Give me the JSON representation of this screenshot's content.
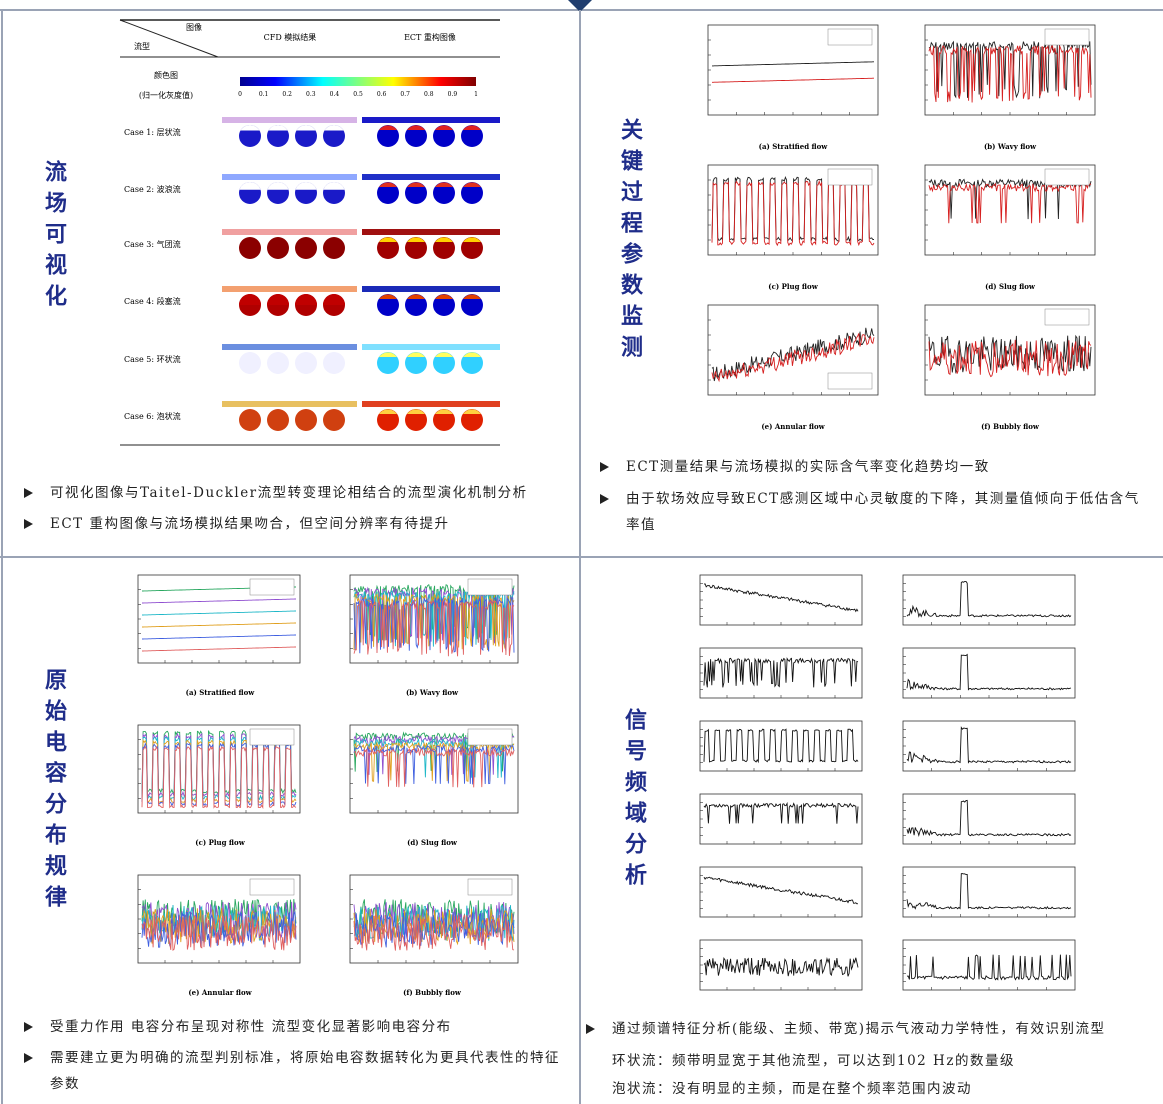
{
  "visualization": {
    "title": "流场可视化",
    "header": {
      "corner_top": "图像",
      "corner_bottom": "流型",
      "cfd": "CFD 模拟结果",
      "ect": "ECT 重构图像"
    },
    "colormap_label": "颜色图",
    "colormap_sublabel": "(归一化灰度值)",
    "colorbar_ticks": [
      0,
      0.1,
      0.2,
      0.3,
      0.4,
      0.5,
      0.6,
      0.7,
      0.8,
      0.9,
      1
    ],
    "cases": [
      "Case 1: 层状流",
      "Case 2: 波浪流",
      "Case 3: 气团流",
      "Case 4: 段塞流",
      "Case 5: 环状流",
      "Case 6: 泡状流"
    ],
    "bullets": [
      "可视化图像与Taitel-Duckler流型转变理论相结合的流型演化机制分析",
      "ECT 重构图像与流场模拟结果吻合，但空间分辨率有待提升"
    ]
  },
  "monitoring": {
    "title": "关键过程参数监测",
    "captions": [
      "(a) Stratified flow",
      "(b) Wavy flow",
      "(c) Plug flow",
      "(d) Slug flow",
      "(e) Annular flow",
      "(f) Bubbly flow"
    ],
    "bullets": [
      "ECT测量结果与流场模拟的实际含气率变化趋势均一致",
      "由于软场效应导致ECT感测区域中心灵敏度的下降，其测量值倾向于低估含气率值"
    ]
  },
  "capacitance": {
    "title": "原始电容分布规律",
    "captions": [
      "(a) Stratified flow",
      "(b) Wavy flow",
      "(c) Plug flow",
      "(d) Slug flow",
      "(e) Annular flow",
      "(f) Bubbly flow"
    ],
    "bullets": [
      "受重力作用 电容分布呈现对称性 流型变化显著影响电容分布",
      "需要建立更为明确的流型判别标准，将原始电容数据转化为更具代表性的特征参数"
    ]
  },
  "spectrum": {
    "title": "信号频域分析",
    "bullets": [
      "通过频谱特征分析(能级、主频、带宽)揭示气液动力学特性，有效识别流型"
    ],
    "notes": [
      "环状流：频带明显宽于其他流型，可以达到102 Hz的数量级",
      "泡状流：没有明显的主频，而是在整个频率范围内波动"
    ]
  }
}
